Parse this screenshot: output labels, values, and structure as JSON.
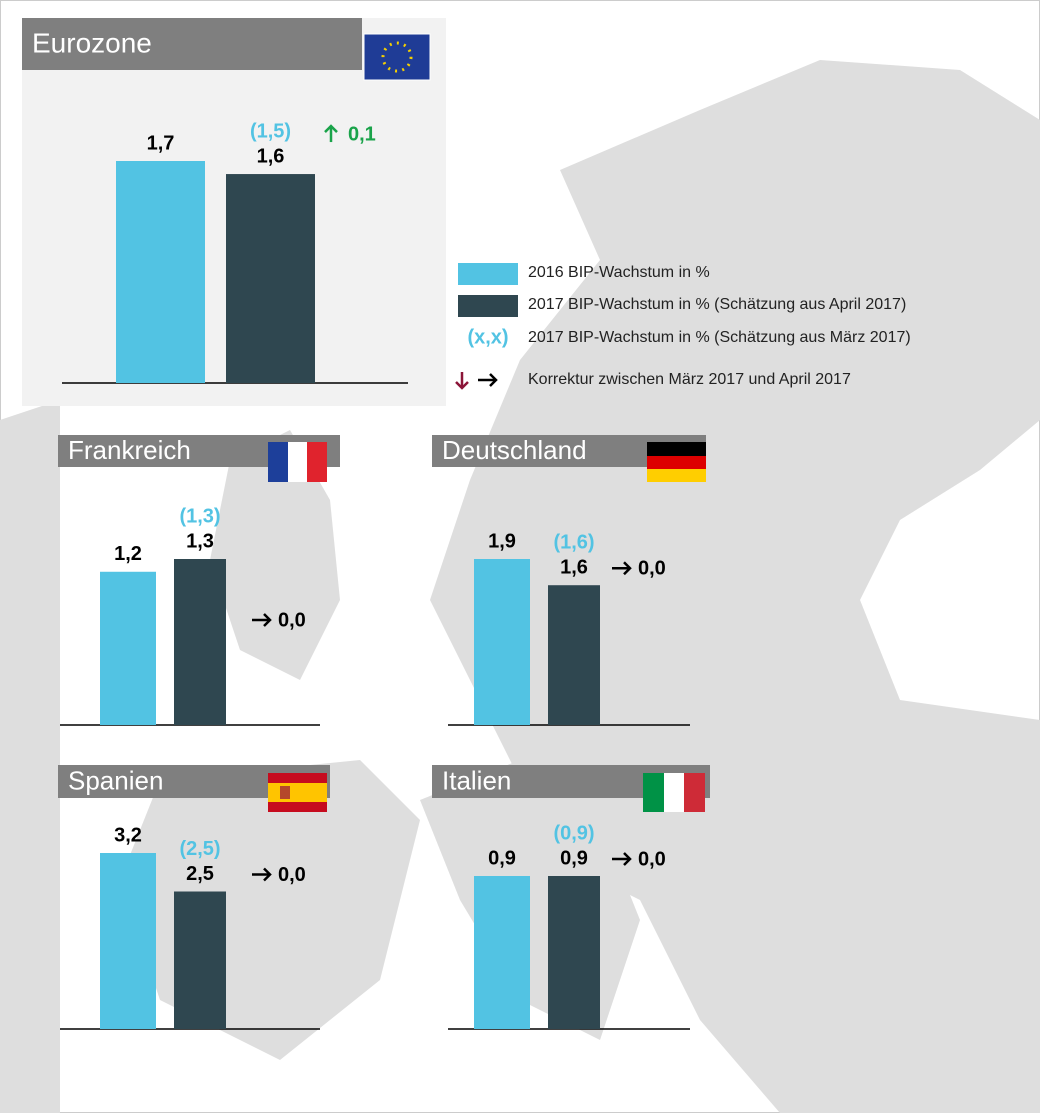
{
  "chart_data": [
    {
      "type": "bar",
      "title": "Eurozone",
      "values": [
        1.7,
        1.6
      ],
      "value_labels": [
        "1,7",
        "1,6"
      ],
      "march_estimate": 1.5,
      "march_estimate_label": "(1,5)",
      "revision": 0.1,
      "revision_label": "0,1"
    },
    {
      "type": "bar",
      "title": "Frankreich",
      "values": [
        1.2,
        1.3
      ],
      "value_labels": [
        "1,2",
        "1,3"
      ],
      "march_estimate": 1.3,
      "march_estimate_label": "(1,3)",
      "revision": 0.0,
      "revision_label": "0,0"
    },
    {
      "type": "bar",
      "title": "Deutschland",
      "values": [
        1.9,
        1.6
      ],
      "value_labels": [
        "1,9",
        "1,6"
      ],
      "march_estimate": 1.6,
      "march_estimate_label": "(1,6)",
      "revision": 0.0,
      "revision_label": "0,0"
    },
    {
      "type": "bar",
      "title": "Spanien",
      "values": [
        3.2,
        2.5
      ],
      "value_labels": [
        "3,2",
        "2,5"
      ],
      "march_estimate": 2.5,
      "march_estimate_label": "(2,5)",
      "revision": 0.0,
      "revision_label": "0,0"
    },
    {
      "type": "bar",
      "title": "Italien",
      "values": [
        0.9,
        0.9
      ],
      "value_labels": [
        "0,9",
        "0,9"
      ],
      "march_estimate": 0.9,
      "march_estimate_label": "(0,9)",
      "revision": 0.0,
      "revision_label": "0,0"
    }
  ],
  "legend": {
    "series": [
      {
        "name": "2016 BIP-Wachstum in %",
        "color": "#52c3e3"
      },
      {
        "name": "2017 BIP-Wachstum in % (Schätzung aus April 2017)",
        "color": "#2f4750"
      }
    ],
    "march_symbol": "(x,x)",
    "march_text": "2017 BIP-Wachstum in % (Schätzung aus März 2017)",
    "correction_text": "Korrektur zwischen März 2017 und April 2017"
  }
}
